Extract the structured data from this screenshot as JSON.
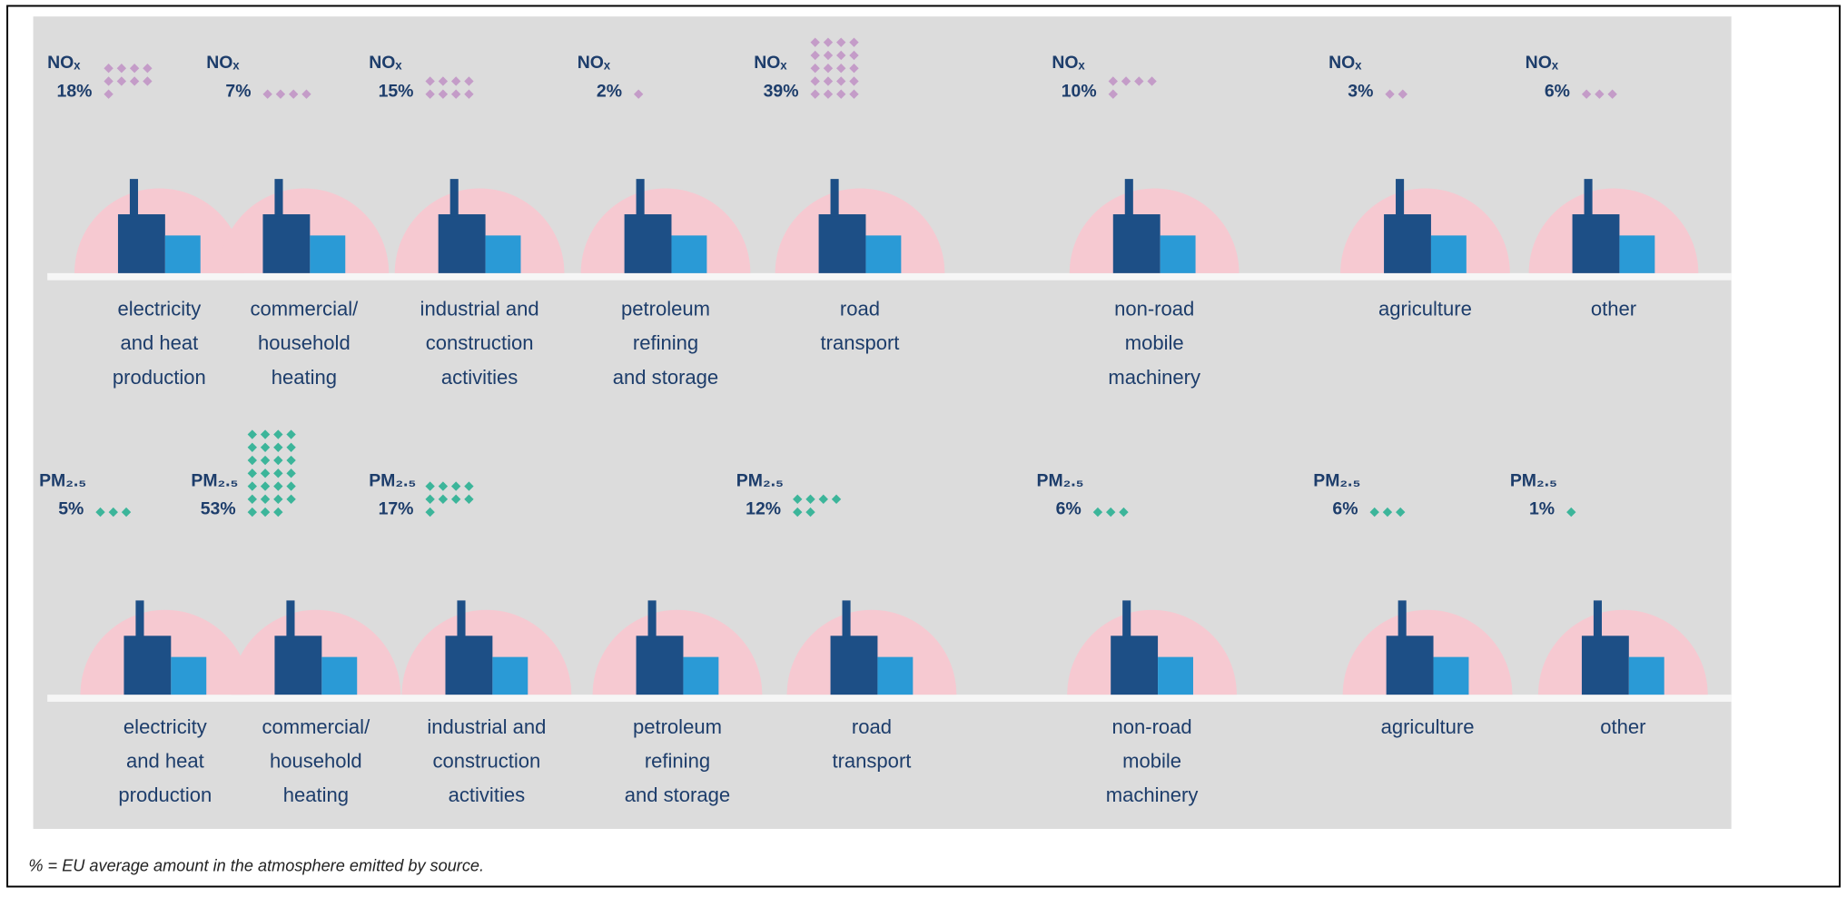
{
  "rows": [
    {
      "pollutant": "NOₓ",
      "sources": [
        {
          "lines": [
            "electricity",
            "and heat",
            "production"
          ],
          "value": 18,
          "value_label": "18%"
        },
        {
          "lines": [
            "commercial/",
            "household",
            "heating"
          ],
          "value": 7,
          "value_label": "7%"
        },
        {
          "lines": [
            "industrial and",
            "construction",
            "activities"
          ],
          "value": 15,
          "value_label": "15%"
        },
        {
          "lines": [
            "petroleum",
            "refining",
            "and storage"
          ],
          "value": 2,
          "value_label": "2%"
        },
        {
          "lines": [
            "road",
            "transport"
          ],
          "value": 39,
          "value_label": "39%"
        },
        {
          "lines": [
            "non-road",
            "mobile",
            "machinery"
          ],
          "value": 10,
          "value_label": "10%"
        },
        {
          "lines": [
            "agriculture"
          ],
          "value": 3,
          "value_label": "3%"
        },
        {
          "lines": [
            "other"
          ],
          "value": 6,
          "value_label": "6%"
        }
      ]
    },
    {
      "pollutant": "PM₂.₅",
      "sources": [
        {
          "lines": [
            "electricity",
            "and heat",
            "production"
          ],
          "value": 5,
          "value_label": "5%"
        },
        {
          "lines": [
            "commercial/",
            "household",
            "heating"
          ],
          "value": 53,
          "value_label": "53%"
        },
        {
          "lines": [
            "industrial and",
            "construction",
            "activities"
          ],
          "value": 17,
          "value_label": "17%"
        },
        {
          "lines": [
            "petroleum",
            "refining",
            "and storage"
          ],
          "value": null,
          "value_label": null
        },
        {
          "lines": [
            "road",
            "transport"
          ],
          "value": 12,
          "value_label": "12%"
        },
        {
          "lines": [
            "non-road",
            "mobile",
            "machinery"
          ],
          "value": 6,
          "value_label": "6%"
        },
        {
          "lines": [
            "agriculture"
          ],
          "value": 6,
          "value_label": "6%"
        },
        {
          "lines": [
            "other"
          ],
          "value": 1,
          "value_label": "1%"
        }
      ]
    }
  ],
  "footnote": "% = EU average amount in the atmosphere emitted by source."
}
